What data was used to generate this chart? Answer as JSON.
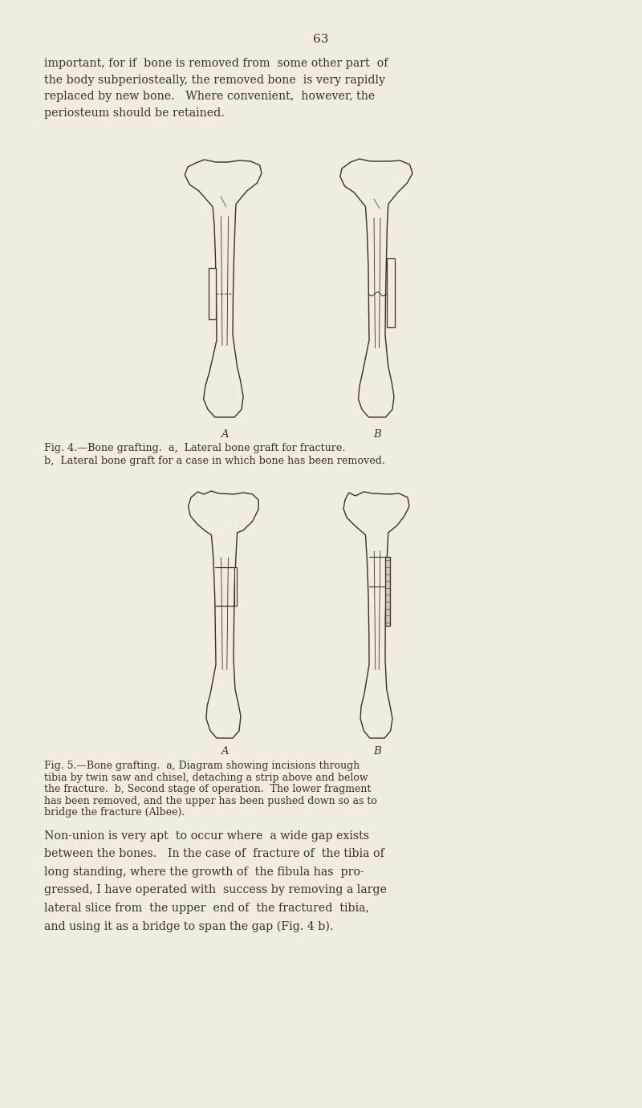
{
  "bg_color": "#f0ede0",
  "text_color": "#3a3025",
  "page_number": "63",
  "paragraph1": "important, for if  bone is removed from  some other part  of\nthe body subperiosteally, the removed bone  is very rapidly\nreplaced by new bone.   Where convenient,  however, the\nperiosteum should be retained.",
  "fig4_caption_line1": "Fig. 4.—Bone grafting.  a,  Lateral bone graft for fracture.",
  "fig4_caption_line2": "b,  Lateral bone graft for a case in which bone has been removed.",
  "fig5_caption_line1": "Fig. 5.—Bone grafting.  a, Diagram showing incisions through",
  "fig5_caption_line2": "tibia by twin saw and chisel, detaching a strip above and below",
  "fig5_caption_line3": "the fracture.  b, Second stage of operation.  The lower fragment",
  "fig5_caption_line4": "has been removed, and the upper has been pushed down so as to",
  "fig5_caption_line5": "bridge the fracture (Albee).",
  "paragraph2_line1": "Non-union is very apt  to occur where  a wide gap exists",
  "paragraph2_line2": "between the bones.   In the case of  fracture of  the tibia of",
  "paragraph2_line3": "long standing, where the growth of  the fibula has  pro-",
  "paragraph2_line4": "gressed, I have operated with  success by removing a large",
  "paragraph2_line5": "lateral slice from  the upper  end of  the fractured  tibia,",
  "paragraph2_line6": "and using it as a bridge to span the gap (Fig. 4 b)."
}
